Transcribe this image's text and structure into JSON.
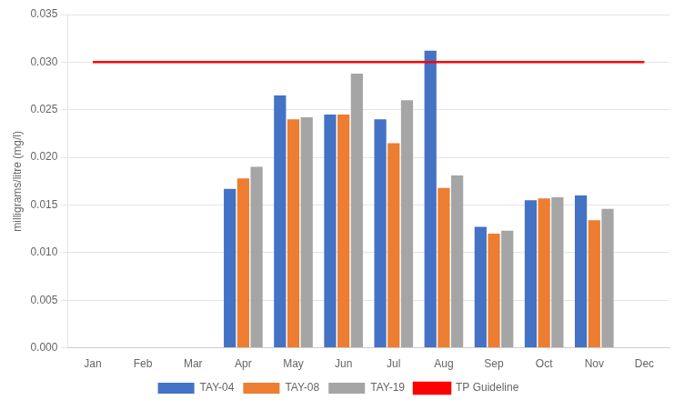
{
  "chart_data": {
    "type": "bar",
    "categories": [
      "Jan",
      "Feb",
      "Mar",
      "Apr",
      "May",
      "Jun",
      "Jul",
      "Aug",
      "Sep",
      "Oct",
      "Nov",
      "Dec"
    ],
    "series": [
      {
        "name": "TAY-04",
        "color": "#4472C4",
        "values": [
          null,
          null,
          null,
          0.0167,
          0.0265,
          0.0245,
          0.024,
          0.0312,
          0.0127,
          0.0155,
          0.016,
          null
        ]
      },
      {
        "name": "TAY-08",
        "color": "#ED7D31",
        "values": [
          null,
          null,
          null,
          0.0178,
          0.024,
          0.0245,
          0.0215,
          0.0168,
          0.012,
          0.0157,
          0.0134,
          null
        ]
      },
      {
        "name": "TAY-19",
        "color": "#A5A5A5",
        "values": [
          null,
          null,
          null,
          0.019,
          0.0242,
          0.0288,
          0.026,
          0.0181,
          0.0123,
          0.0158,
          0.0146,
          null
        ]
      },
      {
        "name": "TP Guideline",
        "type": "line",
        "color": "#FF0000",
        "values": [
          0.03,
          0.03,
          0.03,
          0.03,
          0.03,
          0.03,
          0.03,
          0.03,
          0.03,
          0.03,
          0.03,
          0.03
        ]
      }
    ],
    "y_label": "milligrams/litre (mg/l)",
    "ylim": [
      0,
      0.035
    ],
    "yticks": [
      {
        "value": 0.0,
        "label": "0.000"
      },
      {
        "value": 0.005,
        "label": "0.005"
      },
      {
        "value": 0.01,
        "label": "0.010"
      },
      {
        "value": 0.015,
        "label": "0.015"
      },
      {
        "value": 0.02,
        "label": "0.020"
      },
      {
        "value": 0.025,
        "label": "0.025"
      },
      {
        "value": 0.03,
        "label": "0.030"
      },
      {
        "value": 0.035,
        "label": "0.035"
      }
    ],
    "grid": true,
    "legend": "bottom"
  }
}
